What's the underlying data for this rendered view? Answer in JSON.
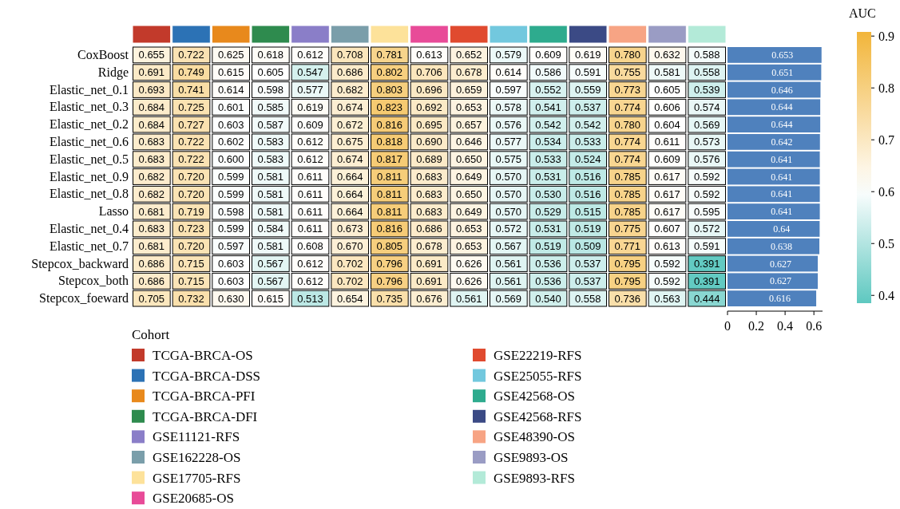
{
  "chart_data": [
    {
      "type": "heatmap",
      "clabel": "AUC",
      "legend_title": "Cohort",
      "legend": "bottom left",
      "data_labels": true,
      "series": [
        {
          "name": "TCGA-BRCA-OS",
          "color": "#c23a2b",
          "values": [
            null,
            null,
            null,
            null,
            null,
            null,
            null,
            null,
            null,
            null,
            null,
            null,
            null,
            null,
            null
          ]
        },
        {
          "name": "TCGA-BRCA-DSS",
          "color": "#2c72b5",
          "values": [
            null,
            null,
            null,
            null,
            null,
            null,
            null,
            null,
            null,
            null,
            null,
            null,
            null,
            null,
            null
          ]
        },
        {
          "name": "TCGA-BRCA-PFI",
          "color": "#e8891c",
          "values": [
            null,
            null,
            null,
            null,
            null,
            null,
            null,
            null,
            null,
            null,
            null,
            null,
            null,
            null,
            null
          ]
        },
        {
          "name": "TCGA-BRCA-DFI",
          "color": "#2e8b4e",
          "values": [
            null,
            null,
            null,
            null,
            null,
            null,
            null,
            null,
            null,
            null,
            null,
            null,
            null,
            null,
            null
          ]
        },
        {
          "name": "GSE11121-RFS",
          "color": "#8a7ec8",
          "values": [
            null,
            null,
            null,
            null,
            null,
            null,
            null,
            null,
            null,
            null,
            null,
            null,
            null,
            null,
            null
          ]
        },
        {
          "name": "GSE162228-OS",
          "color": "#7a9eaa",
          "values": [
            null,
            null,
            null,
            null,
            null,
            null,
            null,
            null,
            null,
            null,
            null,
            null,
            null,
            null,
            null
          ]
        },
        {
          "name": "GSE17705-RFS",
          "color": "#fde29a",
          "values": [
            null,
            null,
            null,
            null,
            null,
            null,
            null,
            null,
            null,
            null,
            null,
            null,
            null,
            null,
            null
          ]
        },
        {
          "name": "GSE20685-OS",
          "color": "#e84b98",
          "values": [
            null,
            null,
            null,
            null,
            null,
            null,
            null,
            null,
            null,
            null,
            null,
            null,
            null,
            null,
            null
          ]
        },
        {
          "name": "GSE22219-RFS",
          "color": "#e04a2f",
          "values": [
            null,
            null,
            null,
            null,
            null,
            null,
            null,
            null,
            null,
            null,
            null,
            null,
            null,
            null,
            null
          ]
        },
        {
          "name": "GSE25055-RFS",
          "color": "#72c8de",
          "values": [
            null,
            null,
            null,
            null,
            null,
            null,
            null,
            null,
            null,
            null,
            null,
            null,
            null,
            null,
            null
          ]
        },
        {
          "name": "GSE42568-OS",
          "color": "#2eab8e",
          "values": [
            null,
            null,
            null,
            null,
            null,
            null,
            null,
            null,
            null,
            null,
            null,
            null,
            null,
            null,
            null
          ]
        },
        {
          "name": "GSE42568-RFS",
          "color": "#3b4a85",
          "values": [
            null,
            null,
            null,
            null,
            null,
            null,
            null,
            null,
            null,
            null,
            null,
            null,
            null,
            null,
            null
          ]
        },
        {
          "name": "GSE48390-OS",
          "color": "#f7a484",
          "values": [
            null,
            null,
            null,
            null,
            null,
            null,
            null,
            null,
            null,
            null,
            null,
            null,
            null,
            null,
            null
          ]
        },
        {
          "name": "GSE9893-OS",
          "color": "#9a9cc4",
          "values": [
            null,
            null,
            null,
            null,
            null,
            null,
            null,
            null,
            null,
            null,
            null,
            null,
            null,
            null,
            null
          ]
        },
        {
          "name": "GSE9893-RFS",
          "color": "#b3ead8",
          "values": [
            null,
            null,
            null,
            null,
            null,
            null,
            null,
            null,
            null,
            null,
            null,
            null,
            null,
            null,
            null
          ]
        }
      ],
      "categories": [
        null,
        null,
        null,
        null,
        null,
        null,
        null,
        null,
        null,
        null,
        null,
        null,
        null,
        null,
        null
      ],
      "cell_labels": [
        [
          "0.655",
          "0.722",
          "0.625",
          "0.618",
          "0.612",
          "0.708",
          "0.781",
          "0.613",
          "0.652",
          "0.579",
          "0.609",
          "0.619",
          "0.780",
          "0.632",
          "0.588"
        ],
        [
          "0.691",
          "0.749",
          "0.615",
          "0.605",
          "0.547",
          "0.686",
          "0.802",
          "0.706",
          "0.678",
          "0.614",
          "0.586",
          "0.591",
          "0.755",
          "0.581",
          "0.558"
        ],
        [
          "0.693",
          "0.741",
          "0.614",
          "0.598",
          "0.577",
          "0.682",
          "0.803",
          "0.696",
          "0.659",
          "0.597",
          "0.552",
          "0.559",
          "0.773",
          "0.605",
          "0.539"
        ],
        [
          "0.684",
          "0.725",
          "0.601",
          "0.585",
          "0.619",
          "0.674",
          "0.823",
          "0.692",
          "0.653",
          "0.578",
          "0.541",
          "0.537",
          "0.774",
          "0.606",
          "0.574"
        ],
        [
          "0.684",
          "0.727",
          "0.603",
          "0.587",
          "0.609",
          "0.672",
          "0.816",
          "0.695",
          "0.657",
          "0.576",
          "0.542",
          "0.542",
          "0.780",
          "0.604",
          "0.569"
        ],
        [
          "0.683",
          "0.722",
          "0.602",
          "0.583",
          "0.612",
          "0.675",
          "0.818",
          "0.690",
          "0.646",
          "0.577",
          "0.534",
          "0.533",
          "0.774",
          "0.611",
          "0.573"
        ],
        [
          "0.683",
          "0.722",
          "0.600",
          "0.583",
          "0.612",
          "0.674",
          "0.817",
          "0.689",
          "0.650",
          "0.575",
          "0.533",
          "0.524",
          "0.774",
          "0.609",
          "0.576"
        ],
        [
          "0.682",
          "0.720",
          "0.599",
          "0.581",
          "0.611",
          "0.664",
          "0.811",
          "0.683",
          "0.649",
          "0.570",
          "0.531",
          "0.516",
          "0.785",
          "0.617",
          "0.592"
        ],
        [
          "0.682",
          "0.720",
          "0.599",
          "0.581",
          "0.611",
          "0.664",
          "0.811",
          "0.683",
          "0.650",
          "0.570",
          "0.530",
          "0.516",
          "0.785",
          "0.617",
          "0.592"
        ],
        [
          "0.681",
          "0.719",
          "0.598",
          "0.581",
          "0.611",
          "0.664",
          "0.811",
          "0.683",
          "0.649",
          "0.570",
          "0.529",
          "0.515",
          "0.785",
          "0.617",
          "0.595"
        ],
        [
          "0.683",
          "0.723",
          "0.599",
          "0.584",
          "0.611",
          "0.673",
          "0.816",
          "0.686",
          "0.653",
          "0.572",
          "0.531",
          "0.519",
          "0.775",
          "0.607",
          "0.572"
        ],
        [
          "0.681",
          "0.720",
          "0.597",
          "0.581",
          "0.608",
          "0.670",
          "0.805",
          "0.678",
          "0.653",
          "0.567",
          "0.519",
          "0.509",
          "0.771",
          "0.613",
          "0.591"
        ],
        [
          "0.686",
          "0.715",
          "0.603",
          "0.567",
          "0.612",
          "0.702",
          "0.796",
          "0.691",
          "0.626",
          "0.561",
          "0.536",
          "0.537",
          "0.795",
          "0.592",
          "0.391"
        ],
        [
          "0.686",
          "0.715",
          "0.603",
          "0.567",
          "0.612",
          "0.702",
          "0.796",
          "0.691",
          "0.626",
          "0.561",
          "0.536",
          "0.537",
          "0.795",
          "0.592",
          "0.391"
        ],
        [
          "0.705",
          "0.732",
          "0.630",
          "0.615",
          "0.513",
          "0.654",
          "0.735",
          "0.676",
          "0.561",
          "0.569",
          "0.540",
          "0.558",
          "0.736",
          "0.563",
          "0.444"
        ]
      ],
      "y_categories": [
        "CoxBoost",
        "Ridge",
        "Elastic_net_0.1",
        "Elastic_net_0.3",
        "Elastic_net_0.2",
        "Elastic_net_0.6",
        "Elastic_net_0.5",
        "Elastic_net_0.9",
        "Elastic_net_0.8",
        "Lasso",
        "Elastic_net_0.4",
        "Elastic_net_0.7",
        "Stepcox_backward",
        "Stepcox_both",
        "Stepcox_foeward"
      ],
      "cells": [
        [
          0.655,
          0.722,
          0.625,
          0.618,
          0.612,
          0.708,
          0.781,
          0.613,
          0.652,
          0.579,
          0.609,
          0.619,
          0.78,
          0.632,
          0.588
        ],
        [
          0.691,
          0.749,
          0.615,
          0.605,
          0.547,
          0.686,
          0.802,
          0.706,
          0.678,
          0.614,
          0.586,
          0.591,
          0.755,
          0.581,
          0.558
        ],
        [
          0.693,
          0.741,
          0.614,
          0.598,
          0.577,
          0.682,
          0.803,
          0.696,
          0.659,
          0.597,
          0.552,
          0.559,
          0.773,
          0.605,
          0.539
        ],
        [
          0.684,
          0.725,
          0.601,
          0.585,
          0.619,
          0.674,
          0.823,
          0.692,
          0.653,
          0.578,
          0.541,
          0.537,
          0.774,
          0.606,
          0.574
        ],
        [
          0.684,
          0.727,
          0.603,
          0.587,
          0.609,
          0.672,
          0.816,
          0.695,
          0.657,
          0.576,
          0.542,
          0.542,
          0.78,
          0.604,
          0.569
        ],
        [
          0.683,
          0.722,
          0.602,
          0.583,
          0.612,
          0.675,
          0.818,
          0.69,
          0.646,
          0.577,
          0.534,
          0.533,
          0.774,
          0.611,
          0.573
        ],
        [
          0.683,
          0.722,
          0.6,
          0.583,
          0.612,
          0.674,
          0.817,
          0.689,
          0.65,
          0.575,
          0.533,
          0.524,
          0.774,
          0.609,
          0.576
        ],
        [
          0.682,
          0.72,
          0.599,
          0.581,
          0.611,
          0.664,
          0.811,
          0.683,
          0.649,
          0.57,
          0.531,
          0.516,
          0.785,
          0.617,
          0.592
        ],
        [
          0.682,
          0.72,
          0.599,
          0.581,
          0.611,
          0.664,
          0.811,
          0.683,
          0.65,
          0.57,
          0.53,
          0.516,
          0.785,
          0.617,
          0.592
        ],
        [
          0.681,
          0.719,
          0.598,
          0.581,
          0.611,
          0.664,
          0.811,
          0.683,
          0.649,
          0.57,
          0.529,
          0.515,
          0.785,
          0.617,
          0.595
        ],
        [
          0.683,
          0.723,
          0.599,
          0.584,
          0.611,
          0.673,
          0.816,
          0.686,
          0.653,
          0.572,
          0.531,
          0.519,
          0.775,
          0.607,
          0.572
        ],
        [
          0.681,
          0.72,
          0.597,
          0.581,
          0.608,
          0.67,
          0.805,
          0.678,
          0.653,
          0.567,
          0.519,
          0.509,
          0.771,
          0.613,
          0.591
        ],
        [
          0.686,
          0.715,
          0.603,
          0.567,
          0.612,
          0.702,
          0.796,
          0.691,
          0.626,
          0.561,
          0.536,
          0.537,
          0.795,
          0.592,
          0.391
        ],
        [
          0.686,
          0.715,
          0.603,
          0.567,
          0.612,
          0.702,
          0.796,
          0.691,
          0.626,
          0.561,
          0.536,
          0.537,
          0.795,
          0.592,
          0.391
        ],
        [
          0.705,
          0.732,
          0.63,
          0.615,
          0.513,
          0.654,
          0.735,
          0.676,
          0.561,
          0.569,
          0.54,
          0.558,
          0.736,
          0.563,
          0.444
        ]
      ],
      "clim": [
        0.385,
        0.908
      ],
      "cticks": [
        0.4,
        0.5,
        0.6,
        0.7,
        0.8,
        0.9
      ]
    },
    {
      "type": "bar",
      "orientation": "horizontal",
      "tick_labels": "x",
      "data_labels": true,
      "color": "#4f81bd",
      "categories": [
        null,
        null,
        null,
        null,
        null,
        null,
        null,
        null,
        null,
        null,
        null,
        null,
        null,
        null,
        null
      ],
      "values": [
        0.653,
        0.651,
        0.646,
        0.644,
        0.644,
        0.642,
        0.641,
        0.641,
        0.641,
        0.641,
        0.64,
        0.638,
        0.627,
        0.627,
        0.616
      ],
      "xlim": [
        0,
        0.66
      ],
      "xticks": [
        0,
        0.2,
        0.4,
        0.6
      ]
    }
  ]
}
